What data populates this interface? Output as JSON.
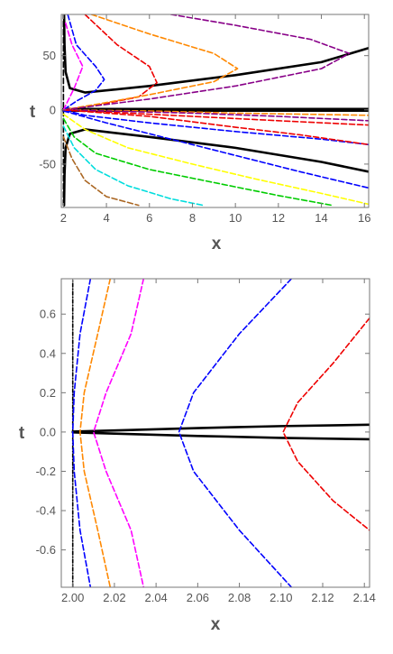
{
  "chart_data": [
    {
      "type": "line",
      "xlabel": "x",
      "ylabel": "t",
      "xlim": [
        1.9,
        16.2
      ],
      "ylim": [
        -90,
        88
      ],
      "xticks": [
        2,
        4,
        6,
        8,
        10,
        12,
        14,
        16
      ],
      "yticks": [
        -50,
        0,
        50
      ],
      "grid": false,
      "series": [
        {
          "color": "#000000",
          "style": "solid",
          "points": [
            [
              2.03,
              88
            ],
            [
              2.05,
              60
            ],
            [
              2.1,
              35
            ],
            [
              2.3,
              20
            ],
            [
              3,
              16
            ],
            [
              6,
              22
            ],
            [
              10,
              32
            ],
            [
              14,
              44
            ],
            [
              16.2,
              57
            ]
          ]
        },
        {
          "color": "#000000",
          "style": "solid",
          "points": [
            [
              2.03,
              -88
            ],
            [
              2.05,
              -60
            ],
            [
              2.1,
              -35
            ],
            [
              2.3,
              -22
            ],
            [
              3,
              -18
            ],
            [
              6,
              -25
            ],
            [
              10,
              -35
            ],
            [
              14,
              -48
            ],
            [
              16.2,
              -57
            ]
          ]
        },
        {
          "color": "#000000",
          "style": "solid",
          "points": [
            [
              2,
              0.8
            ],
            [
              16.2,
              0.8
            ]
          ]
        },
        {
          "color": "#000000",
          "style": "solid",
          "points": [
            [
              2,
              -0.8
            ],
            [
              16.2,
              -0.8
            ]
          ]
        },
        {
          "color": "#000000",
          "style": "dashed",
          "points": [
            [
              2,
              -88
            ],
            [
              2,
              88
            ]
          ]
        },
        {
          "color": "#0000ff",
          "style": "dashed",
          "points": [
            [
              2.2,
              88
            ],
            [
              2.6,
              60
            ],
            [
              3.5,
              40
            ],
            [
              3.9,
              28
            ],
            [
              3.5,
              18
            ],
            [
              2.6,
              8
            ],
            [
              2,
              0
            ],
            [
              3,
              -5
            ],
            [
              6,
              -12
            ],
            [
              10,
              -20
            ],
            [
              14,
              -27
            ],
            [
              16.2,
              -32
            ]
          ]
        },
        {
          "color": "#ee0000",
          "style": "dashed",
          "points": [
            [
              3,
              88
            ],
            [
              4.5,
              60
            ],
            [
              6,
              40
            ],
            [
              6.35,
              25
            ],
            [
              5.5,
              12
            ],
            [
              3.5,
              4
            ],
            [
              2,
              0
            ],
            [
              4,
              -2
            ],
            [
              8,
              -6
            ],
            [
              12,
              -10
            ],
            [
              16.2,
              -14
            ]
          ]
        },
        {
          "color": "#ff8800",
          "style": "dashed",
          "points": [
            [
              3.3,
              88
            ],
            [
              6,
              70
            ],
            [
              9,
              52
            ],
            [
              10.1,
              38
            ],
            [
              9,
              26
            ],
            [
              6,
              14
            ],
            [
              3.5,
              5
            ],
            [
              2,
              0
            ],
            [
              6,
              -1
            ],
            [
              10,
              -3
            ],
            [
              16.2,
              -5
            ]
          ]
        },
        {
          "color": "#880088",
          "style": "dashed",
          "points": [
            [
              7,
              88
            ],
            [
              10,
              78
            ],
            [
              13.5,
              65
            ],
            [
              15.3,
              52
            ],
            [
              14,
              38
            ],
            [
              10,
              22
            ],
            [
              6,
              10
            ],
            [
              2,
              0
            ],
            [
              8,
              -3
            ],
            [
              12,
              -6
            ],
            [
              16.2,
              -10
            ]
          ]
        },
        {
          "color": "#ff00ff",
          "style": "dashed",
          "points": [
            [
              2.1,
              80
            ],
            [
              2.4,
              60
            ],
            [
              2.9,
              40
            ],
            [
              2.5,
              20
            ],
            [
              2,
              0
            ]
          ]
        },
        {
          "color": "#00cc00",
          "style": "dashed",
          "points": [
            [
              2,
              -8
            ],
            [
              2.5,
              -25
            ],
            [
              3.5,
              -40
            ],
            [
              6,
              -55
            ],
            [
              9,
              -67
            ],
            [
              12,
              -79
            ],
            [
              14.5,
              -88
            ]
          ]
        },
        {
          "color": "#ffff00",
          "style": "dashed",
          "points": [
            [
              2,
              -4
            ],
            [
              3,
              -18
            ],
            [
              5,
              -35
            ],
            [
              8,
              -50
            ],
            [
              11,
              -64
            ],
            [
              14,
              -77
            ],
            [
              16.2,
              -87
            ]
          ]
        },
        {
          "color": "#0000ff",
          "style": "dashed",
          "points": [
            [
              2,
              -1
            ],
            [
              4,
              -12
            ],
            [
              7,
              -27
            ],
            [
              10,
              -42
            ],
            [
              13,
              -57
            ],
            [
              16.2,
              -72
            ]
          ]
        },
        {
          "color": "#ee0000",
          "style": "dashed",
          "points": [
            [
              2,
              0
            ],
            [
              6,
              -6
            ],
            [
              10,
              -16
            ],
            [
              13,
              -23
            ],
            [
              16.2,
              -32
            ]
          ]
        },
        {
          "color": "#00dddd",
          "style": "dashed",
          "points": [
            [
              2,
              -15
            ],
            [
              2.5,
              -35
            ],
            [
              3.5,
              -55
            ],
            [
              5,
              -70
            ],
            [
              7,
              -82
            ],
            [
              8.5,
              -88
            ]
          ]
        },
        {
          "color": "#aa6622",
          "style": "dashed",
          "points": [
            [
              2,
              -25
            ],
            [
              2.4,
              -45
            ],
            [
              3,
              -65
            ],
            [
              4,
              -80
            ],
            [
              5.5,
              -88
            ]
          ]
        }
      ]
    },
    {
      "type": "line",
      "xlabel": "x",
      "ylabel": "t",
      "xlim": [
        1.9945,
        2.1425
      ],
      "ylim": [
        -0.79,
        0.78
      ],
      "xticks": [
        "2.00",
        "2.02",
        "2.04",
        "2.06",
        "2.08",
        "2.10",
        "2.12",
        "2.14"
      ],
      "yticks": [
        "-0.6",
        "-0.4",
        "-0.2",
        "0.0",
        "0.2",
        "0.4",
        "0.6"
      ],
      "grid": false,
      "series": [
        {
          "color": "#000000",
          "style": "dashdot",
          "points": [
            [
              2.0,
              -0.79
            ],
            [
              2.0,
              0.78
            ]
          ]
        },
        {
          "color": "#000000",
          "style": "solid",
          "points": [
            [
              2.0,
              0.002
            ],
            [
              2.02,
              0.008
            ],
            [
              2.06,
              0.02
            ],
            [
              2.1,
              0.03
            ],
            [
              2.1425,
              0.037
            ]
          ]
        },
        {
          "color": "#000000",
          "style": "solid",
          "points": [
            [
              2.0,
              -0.002
            ],
            [
              2.02,
              -0.008
            ],
            [
              2.06,
              -0.02
            ],
            [
              2.1,
              -0.03
            ],
            [
              2.1425,
              -0.037
            ]
          ]
        },
        {
          "color": "#0000ff",
          "style": "dashed",
          "points": [
            [
              2.0085,
              0.78
            ],
            [
              2.0035,
              0.5
            ],
            [
              2.0007,
              0.2
            ],
            [
              2.0,
              0.0
            ],
            [
              2.0007,
              -0.2
            ],
            [
              2.0035,
              -0.5
            ],
            [
              2.0085,
              -0.79
            ]
          ]
        },
        {
          "color": "#ff8800",
          "style": "dashed",
          "points": [
            [
              2.018,
              0.78
            ],
            [
              2.012,
              0.5
            ],
            [
              2.0055,
              0.2
            ],
            [
              2.0035,
              0.0
            ],
            [
              2.0055,
              -0.2
            ],
            [
              2.012,
              -0.5
            ],
            [
              2.018,
              -0.79
            ]
          ]
        },
        {
          "color": "#ff00ff",
          "style": "dashed",
          "points": [
            [
              2.034,
              0.78
            ],
            [
              2.028,
              0.5
            ],
            [
              2.016,
              0.2
            ],
            [
              2.01,
              0.0
            ],
            [
              2.016,
              -0.2
            ],
            [
              2.028,
              -0.5
            ],
            [
              2.034,
              -0.79
            ]
          ]
        },
        {
          "color": "#0000ff",
          "style": "dashed",
          "points": [
            [
              2.105,
              0.78
            ],
            [
              2.08,
              0.5
            ],
            [
              2.058,
              0.2
            ],
            [
              2.051,
              0.0
            ],
            [
              2.058,
              -0.2
            ],
            [
              2.08,
              -0.5
            ],
            [
              2.105,
              -0.79
            ]
          ]
        },
        {
          "color": "#ee0000",
          "style": "dashed",
          "points": [
            [
              2.1425,
              0.58
            ],
            [
              2.125,
              0.35
            ],
            [
              2.108,
              0.15
            ],
            [
              2.101,
              0.0
            ],
            [
              2.108,
              -0.15
            ],
            [
              2.125,
              -0.35
            ],
            [
              2.1425,
              -0.5
            ]
          ]
        }
      ]
    }
  ]
}
